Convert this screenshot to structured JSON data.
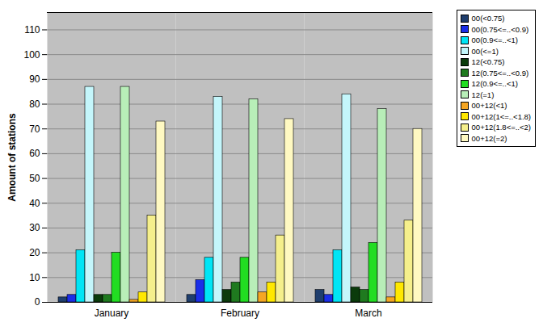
{
  "chart_data": {
    "type": "bar",
    "y_label": "Amount of stations",
    "categories": [
      "January",
      "February",
      "March"
    ],
    "series": [
      {
        "name": "00(<0.75)",
        "color": "#1f3e6e",
        "values": [
          2,
          3,
          5
        ]
      },
      {
        "name": "00(0.75<=..<0.9)",
        "color": "#1a2ee8",
        "values": [
          3,
          9,
          3
        ]
      },
      {
        "name": "00(0.9<=..<1)",
        "color": "#00e5f5",
        "values": [
          21,
          18,
          21
        ]
      },
      {
        "name": "00(<=1)",
        "color": "#c4f6fb",
        "values": [
          87,
          83,
          84
        ]
      },
      {
        "name": "12(<0.75)",
        "color": "#0b3b0b",
        "values": [
          3,
          5,
          6
        ]
      },
      {
        "name": "12(0.75<=..<0.9)",
        "color": "#1f7a1f",
        "values": [
          3,
          8,
          5
        ]
      },
      {
        "name": "12(0.9<=..<1)",
        "color": "#22dd22",
        "values": [
          20,
          18,
          24
        ]
      },
      {
        "name": "12(=1)",
        "color": "#b8eeb8",
        "values": [
          87,
          82,
          78
        ]
      },
      {
        "name": "00+12(<1)",
        "color": "#f5a623",
        "values": [
          1,
          4,
          2
        ]
      },
      {
        "name": "00+12(1<=..<1.8)",
        "color": "#ffe800",
        "values": [
          4,
          8,
          8
        ]
      },
      {
        "name": "00+12(1.8<=..<2)",
        "color": "#f5ef8c",
        "values": [
          35,
          27,
          33
        ]
      },
      {
        "name": "00+12(=2)",
        "color": "#fff9c2",
        "values": [
          73,
          74,
          70
        ]
      }
    ],
    "ylim": [
      0,
      117
    ],
    "yticks": [
      0,
      10,
      20,
      30,
      40,
      50,
      60,
      70,
      80,
      90,
      100,
      110
    ],
    "grid": true,
    "legend": "top-right"
  }
}
